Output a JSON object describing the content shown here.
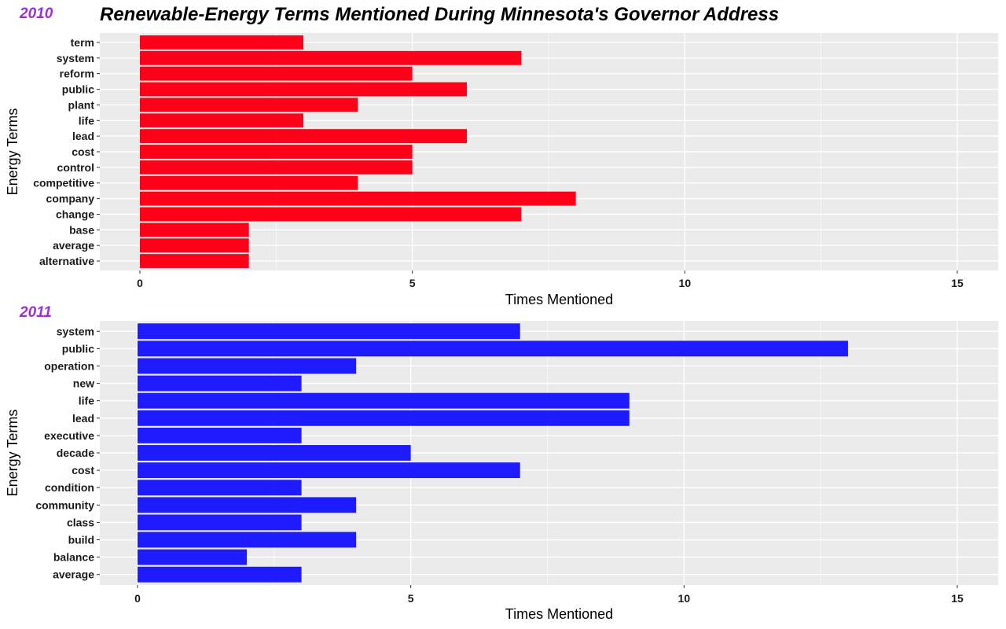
{
  "title": "Renewable-Energy Terms Mentioned During Minnesota's Governor Address",
  "colors": {
    "panel_label": "#9b30d9",
    "panel_bg": "#ebebeb",
    "grid": "#ffffff"
  },
  "chart_data": [
    {
      "type": "bar",
      "orientation": "horizontal",
      "panel_label": "2010",
      "xlabel": "Times Mentioned",
      "ylabel": "Energy Terms",
      "xlim": [
        0,
        15
      ],
      "xticks": [
        0,
        5,
        10,
        15
      ],
      "grid": true,
      "bar_color": "#ff0019",
      "categories": [
        "term",
        "system",
        "reform",
        "public",
        "plant",
        "life",
        "lead",
        "cost",
        "control",
        "competitive",
        "company",
        "change",
        "base",
        "average",
        "alternative"
      ],
      "values": [
        3,
        7,
        5,
        6,
        4,
        3,
        6,
        5,
        5,
        4,
        8,
        7,
        2,
        2,
        2
      ]
    },
    {
      "type": "bar",
      "orientation": "horizontal",
      "panel_label": "2011",
      "xlabel": "Times Mentioned",
      "ylabel": "Energy Terms",
      "xlim": [
        0,
        15
      ],
      "xticks": [
        0,
        5,
        10,
        15
      ],
      "grid": true,
      "bar_color": "#1f1bff",
      "categories": [
        "system",
        "public",
        "operation",
        "new",
        "life",
        "lead",
        "executive",
        "decade",
        "cost",
        "condition",
        "community",
        "class",
        "build",
        "balance",
        "average"
      ],
      "values": [
        7,
        13,
        4,
        3,
        9,
        9,
        3,
        5,
        7,
        3,
        4,
        3,
        4,
        2,
        3
      ]
    }
  ]
}
